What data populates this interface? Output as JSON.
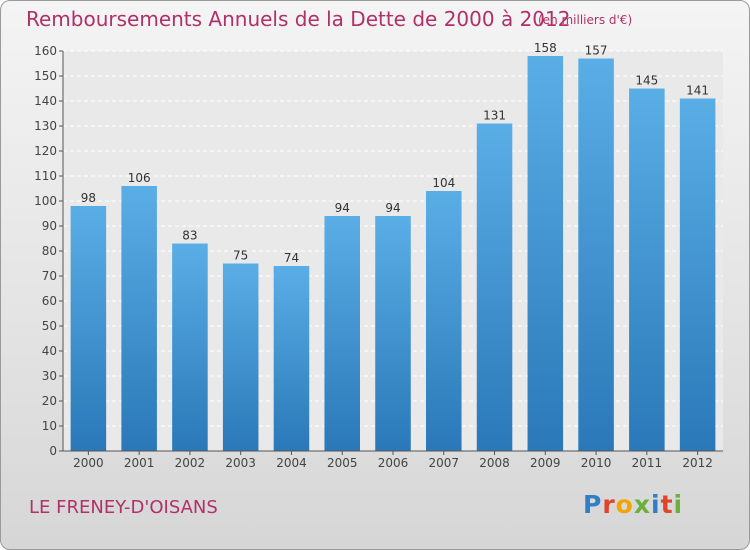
{
  "header": {
    "title": "Remboursements Annuels de la Dette de 2000 à 2012",
    "unit": "(en milliers d'€)"
  },
  "footer": {
    "place": "LE FRENEY-D'OISANS",
    "logo": [
      "P",
      "r",
      "o",
      "x",
      "i",
      "t",
      "i"
    ]
  },
  "colors": {
    "title": "#b0306a",
    "bar_top": "#5aaee6",
    "bar_bottom": "#2a78b8",
    "logo": [
      "#2e7fc5",
      "#e0452b",
      "#f2a400",
      "#6ab13c",
      "#2e7fc5",
      "#e0452b",
      "#6ab13c"
    ]
  },
  "chart_data": {
    "type": "bar",
    "categories": [
      "2000",
      "2001",
      "2002",
      "2003",
      "2004",
      "2005",
      "2006",
      "2007",
      "2008",
      "2009",
      "2010",
      "2011",
      "2012"
    ],
    "values": [
      98,
      106,
      83,
      75,
      74,
      94,
      94,
      104,
      131,
      158,
      157,
      145,
      141
    ],
    "yticks": [
      0,
      10,
      20,
      30,
      40,
      50,
      60,
      70,
      80,
      90,
      100,
      110,
      120,
      130,
      140,
      150,
      160
    ],
    "ylim": [
      0,
      160
    ],
    "grid": true
  }
}
